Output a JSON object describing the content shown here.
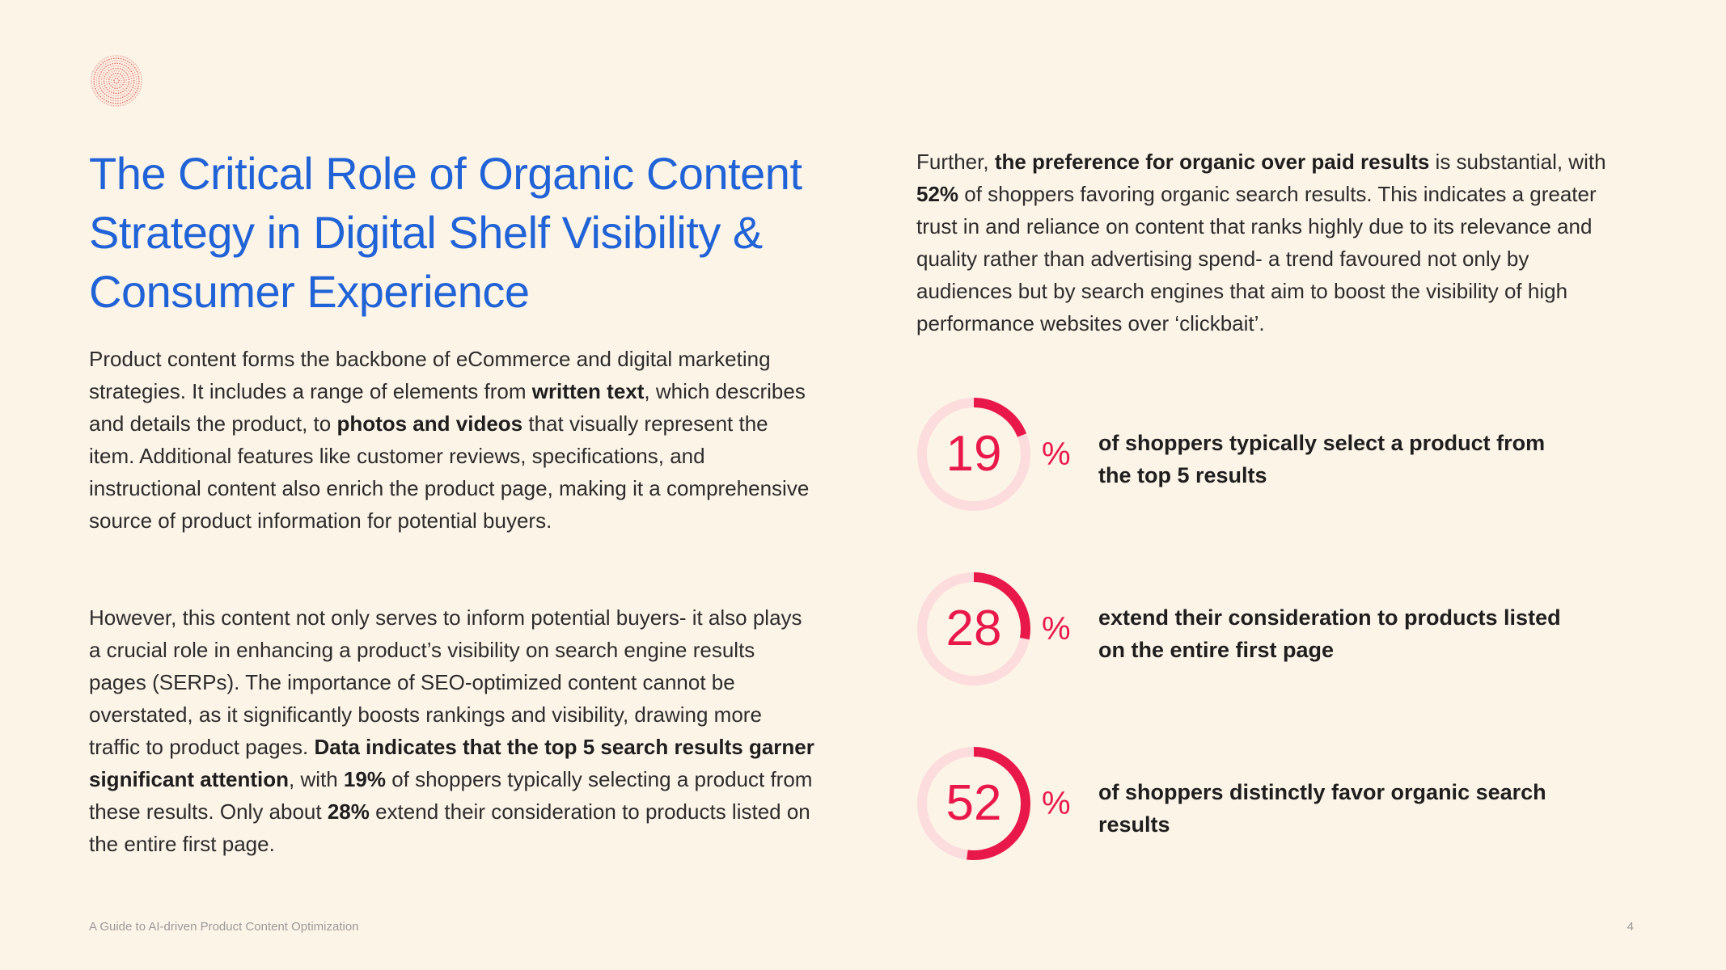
{
  "title": "The Critical Role of Organic Content Strategy in Digital Shelf Visibility & Consumer Experience",
  "paragraph1": {
    "t1": "Product content forms the backbone of eCommerce and digital marketing strategies. It includes a range of elements from ",
    "b1": "written text",
    "t2": ", which describes and details the product, to ",
    "b2": "photos and videos",
    "t3": " that visually represent the item. Additional features like customer reviews, specifications, and instructional content also enrich the product page, making it a comprehensive source of product information for potential buyers."
  },
  "paragraph2": {
    "t1": "However, this content not only serves to inform potential buyers- it also plays a crucial role in enhancing a product’s visibility on search engine results pages (SERPs). The importance of SEO-optimized content cannot be overstated, as it significantly boosts rankings and visibility, drawing more traffic to product pages. ",
    "b1": "Data indicates that the top 5 search results garner significant attention",
    "t2": ", with ",
    "b2": "19%",
    "t3": " of shoppers typically selecting a product from these results. Only about ",
    "b3": "28%",
    "t4": " extend their consideration to products listed on the entire first page."
  },
  "paragraph3": {
    "t1": "Further, ",
    "b1": "the preference for organic over paid results",
    "t2": " is substantial, with ",
    "b2": "52%",
    "t3": " of shoppers favoring organic search results. This indicates a greater trust in and reliance on content that ranks highly due to its relevance and quality rather than advertising spend- a trend favoured not only by audiences but by search engines that aim to boost the visibility of high performance websites over ‘clickbait’."
  },
  "stats": [
    {
      "value": "19",
      "unit": "%",
      "fraction": 0.19,
      "label": "of shoppers typically select a product from the top 5 results"
    },
    {
      "value": "28",
      "unit": "%",
      "fraction": 0.28,
      "label": "extend their consideration to products listed on the entire first page"
    },
    {
      "value": "52",
      "unit": "%",
      "fraction": 0.52,
      "label": "of shoppers distinctly favor organic search results"
    }
  ],
  "colors": {
    "accent": "#e8194a",
    "ring_track": "#fcdcdc",
    "title": "#1f63d6",
    "background": "#fdf4e8"
  },
  "footer": {
    "text": "A Guide to AI-driven Product Content Optimization",
    "page_number": "4"
  }
}
